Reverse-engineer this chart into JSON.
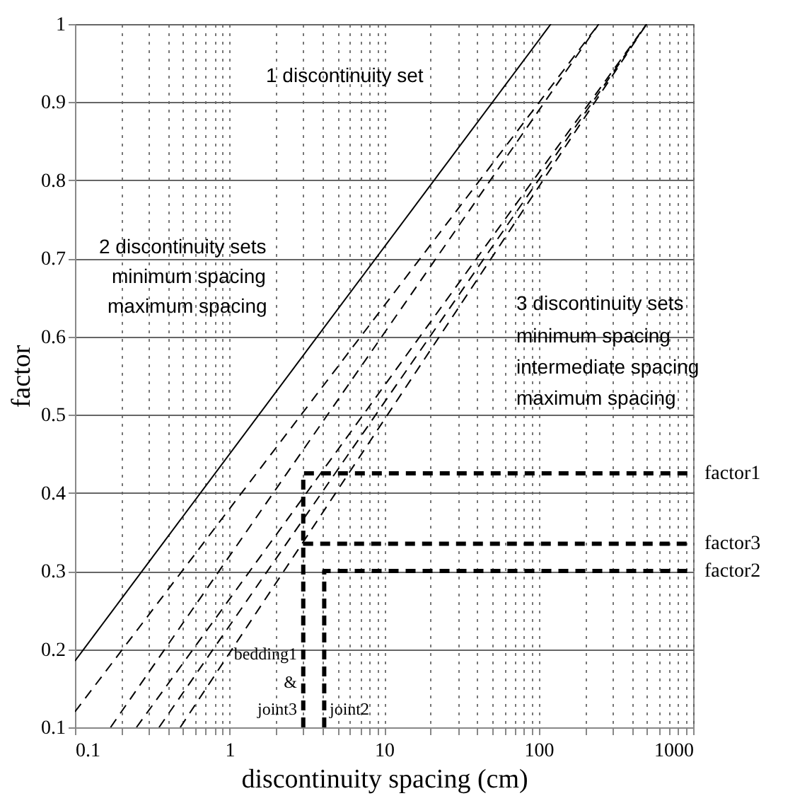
{
  "chart_data": {
    "type": "line",
    "xlabel": "discontinuity spacing (cm)",
    "ylabel": "factor",
    "log": "x",
    "grid": true,
    "xlim": [
      0.1,
      1000
    ],
    "ylim": [
      0.1,
      1
    ],
    "xticks": [
      0.1,
      {
        "value": 0.2,
        "label": null
      },
      {
        "value": 0.3,
        "label": null
      },
      {
        "value": 0.4,
        "label": null
      },
      {
        "value": 0.5,
        "label": null
      },
      {
        "value": 0.6,
        "label": null
      },
      {
        "value": 0.7,
        "label": null
      },
      {
        "value": 0.8,
        "label": null
      },
      {
        "value": 0.9,
        "label": null
      },
      1,
      {
        "value": 2,
        "label": null
      },
      {
        "value": 3,
        "label": null
      },
      {
        "value": 4,
        "label": null
      },
      {
        "value": 5,
        "label": null
      },
      {
        "value": 6,
        "label": null
      },
      {
        "value": 7,
        "label": null
      },
      {
        "value": 8,
        "label": null
      },
      {
        "value": 9,
        "label": null
      },
      10,
      {
        "value": 20,
        "label": null
      },
      {
        "value": 30,
        "label": null
      },
      {
        "value": 40,
        "label": null
      },
      {
        "value": 50,
        "label": null
      },
      {
        "value": 60,
        "label": null
      },
      {
        "value": 70,
        "label": null
      },
      {
        "value": 80,
        "label": null
      },
      {
        "value": 90,
        "label": null
      },
      100,
      {
        "value": 200,
        "label": null
      },
      {
        "value": 300,
        "label": null
      },
      {
        "value": 400,
        "label": null
      },
      {
        "value": 500,
        "label": null
      },
      {
        "value": 600,
        "label": null
      },
      {
        "value": 700,
        "label": null
      },
      {
        "value": 800,
        "label": null
      },
      {
        "value": 900,
        "label": null
      },
      1000
    ],
    "yticks": [
      0.1,
      0.2,
      0.3,
      0.4,
      0.5,
      0.6,
      0.7,
      0.8,
      0.9,
      1
    ],
    "series": [
      {
        "color": "#000000",
        "line_style": "solid",
        "x": [
          0.1,
          120
        ],
        "values": [
          0.185,
          1
        ]
      },
      {
        "color": "#000000",
        "line_style": "dashed",
        "x": [
          0.1,
          245
        ],
        "values": [
          0.12,
          1
        ]
      },
      {
        "color": "#000000",
        "line_style": "dashed",
        "x": [
          0.17,
          245
        ],
        "values": [
          0.1,
          1
        ]
      },
      {
        "color": "#000000",
        "line_style": "dashed",
        "x": [
          0.25,
          500
        ],
        "values": [
          0.1,
          1
        ]
      },
      {
        "color": "#000000",
        "line_style": "dashed",
        "x": [
          0.35,
          500
        ],
        "values": [
          0.1,
          1
        ]
      },
      {
        "color": "#000000",
        "line_style": "dashed",
        "x": [
          0.48,
          500
        ],
        "values": [
          0.1,
          1
        ]
      },
      {
        "name": "factor1",
        "color": "#000000",
        "line_style": "dashed",
        "x": [
          3,
          3,
          1000
        ],
        "values": [
          0.1,
          0.425,
          0.425
        ]
      },
      {
        "name": "factor3",
        "color": "#000000",
        "line_style": "dashed",
        "x": [
          3,
          1000
        ],
        "values": [
          0.335,
          0.335
        ]
      },
      {
        "name": "factor2",
        "color": "#000000",
        "line_style": "dashed",
        "x": [
          4.1,
          4.1,
          1000
        ],
        "values": [
          0.1,
          0.3,
          0.3
        ]
      }
    ],
    "annotations": [
      "1 discontinuity set",
      "2 discontinuity sets",
      "minimum spacing",
      "maximum spacing",
      "3 discontinuity sets",
      "minimum spacing",
      "intermediate spacing",
      "maximum spacing",
      "bedding1",
      "&",
      "joint3",
      "joint2"
    ]
  }
}
